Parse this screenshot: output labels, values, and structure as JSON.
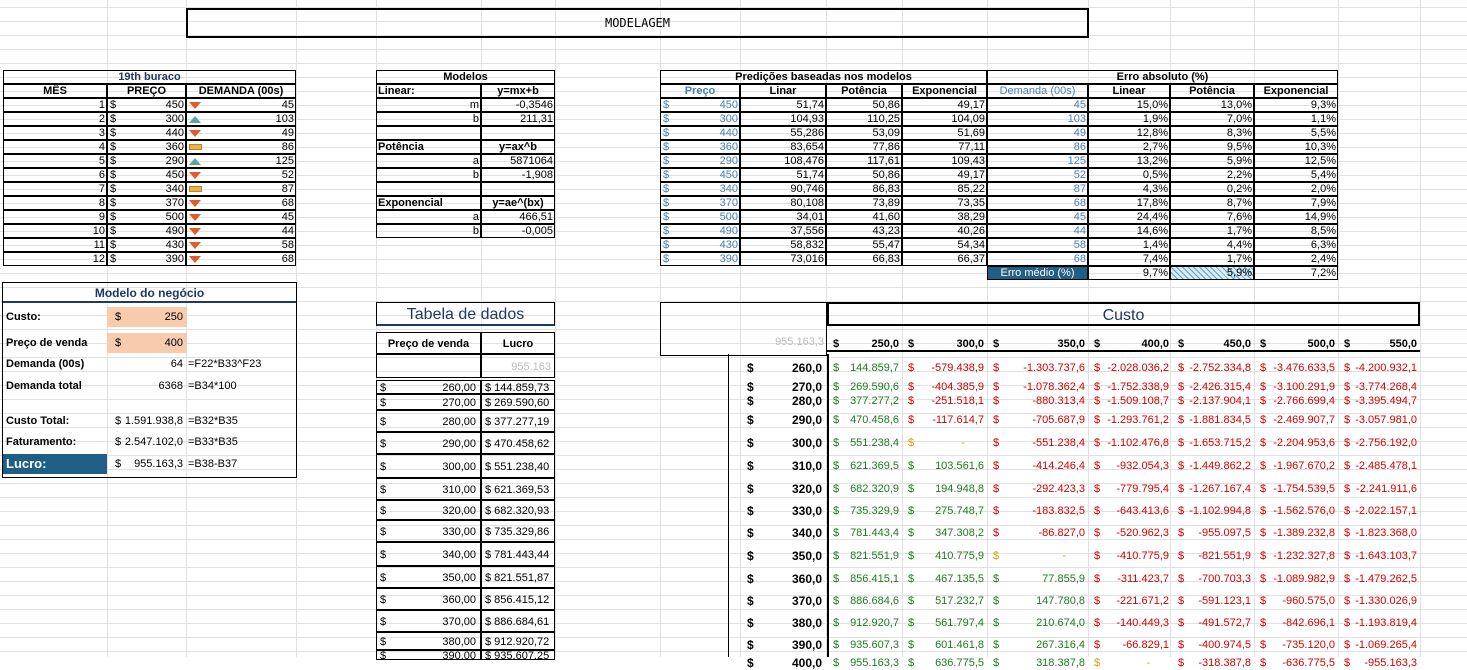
{
  "title": "MODELAGEM",
  "month_table": {
    "title": "19th buraco",
    "headers": [
      "MÊS",
      "PREÇO",
      "DEMANDA (00s)"
    ],
    "rows": [
      {
        "m": "1",
        "p": "450",
        "d": "45",
        "t": "down"
      },
      {
        "m": "2",
        "p": "300",
        "d": "103",
        "t": "up"
      },
      {
        "m": "3",
        "p": "440",
        "d": "49",
        "t": "down"
      },
      {
        "m": "4",
        "p": "360",
        "d": "86",
        "t": "flat"
      },
      {
        "m": "5",
        "p": "290",
        "d": "125",
        "t": "up"
      },
      {
        "m": "6",
        "p": "450",
        "d": "52",
        "t": "down"
      },
      {
        "m": "7",
        "p": "340",
        "d": "87",
        "t": "flat"
      },
      {
        "m": "8",
        "p": "370",
        "d": "68",
        "t": "down"
      },
      {
        "m": "9",
        "p": "500",
        "d": "45",
        "t": "down"
      },
      {
        "m": "10",
        "p": "490",
        "d": "44",
        "t": "down"
      },
      {
        "m": "11",
        "p": "430",
        "d": "58",
        "t": "down"
      },
      {
        "m": "12",
        "p": "390",
        "d": "68",
        "t": "down"
      }
    ]
  },
  "models": {
    "title": "Modelos",
    "rows": [
      [
        "Linear:",
        "y=mx+b"
      ],
      [
        "m",
        "-0,3546"
      ],
      [
        "b",
        "211,31"
      ],
      [
        "",
        ""
      ],
      [
        "Potência",
        "y=ax^b"
      ],
      [
        "a",
        "5871064"
      ],
      [
        "b",
        "-1,908"
      ],
      [
        "",
        ""
      ],
      [
        "Exponencial",
        "y=ae^(bx)"
      ],
      [
        "a",
        "466,51"
      ],
      [
        "b",
        "-0,005"
      ]
    ]
  },
  "predictions": {
    "title": "Predições baseadas nos modelos",
    "headers": [
      "Preço",
      "Linar",
      "Potência",
      "Exponencial"
    ],
    "rows": [
      [
        "450",
        "51,74",
        "50,86",
        "49,17"
      ],
      [
        "300",
        "104,93",
        "110,25",
        "104,09"
      ],
      [
        "440",
        "55,286",
        "53,09",
        "51,69"
      ],
      [
        "360",
        "83,654",
        "77,86",
        "77,11"
      ],
      [
        "290",
        "108,476",
        "117,61",
        "109,43"
      ],
      [
        "450",
        "51,74",
        "50,86",
        "49,17"
      ],
      [
        "340",
        "90,746",
        "86,83",
        "85,22"
      ],
      [
        "370",
        "80,108",
        "73,89",
        "73,35"
      ],
      [
        "500",
        "34,01",
        "41,60",
        "38,29"
      ],
      [
        "490",
        "37,556",
        "43,23",
        "40,26"
      ],
      [
        "430",
        "58,832",
        "55,47",
        "54,34"
      ],
      [
        "390",
        "73,016",
        "66,83",
        "66,37"
      ]
    ]
  },
  "errors": {
    "title": "Erro absoluto (%)",
    "headers": [
      "Demanda (00s)",
      "Linear",
      "Potência",
      "Exponencial"
    ],
    "rows": [
      [
        "45",
        "15,0%",
        "13,0%",
        "9,3%"
      ],
      [
        "103",
        "1,9%",
        "7,0%",
        "1,1%"
      ],
      [
        "49",
        "12,8%",
        "8,3%",
        "5,5%"
      ],
      [
        "86",
        "2,7%",
        "9,5%",
        "10,3%"
      ],
      [
        "125",
        "13,2%",
        "5,9%",
        "12,5%"
      ],
      [
        "52",
        "0,5%",
        "2,2%",
        "5,4%"
      ],
      [
        "87",
        "4,3%",
        "0,2%",
        "2,0%"
      ],
      [
        "68",
        "17,8%",
        "8,7%",
        "7,9%"
      ],
      [
        "45",
        "24,4%",
        "7,6%",
        "14,9%"
      ],
      [
        "44",
        "14,6%",
        "1,7%",
        "8,5%"
      ],
      [
        "58",
        "1,4%",
        "4,4%",
        "6,3%"
      ],
      [
        "68",
        "7,4%",
        "1,7%",
        "2,4%"
      ]
    ],
    "mean_label": "Erro médio (%)",
    "mean": [
      "9,7%",
      "5,9%",
      "7,2%"
    ]
  },
  "business": {
    "title": "Modelo do negócio",
    "rows": [
      {
        "label": "Custo:",
        "cur": "$",
        "val": "250",
        "f": ""
      },
      {
        "label": "Preço de venda",
        "cur": "$",
        "val": "400",
        "f": ""
      },
      {
        "label": "Demanda (00s)",
        "cur": "",
        "val": "64",
        "f": "=F22*B33^F23"
      },
      {
        "label": "Demanda total",
        "cur": "",
        "val": "6368",
        "f": "=B34*100"
      },
      {
        "label": "Custo Total:",
        "cur": "$",
        "val": "1.591.938,8",
        "f": "=B32*B35"
      },
      {
        "label": "Faturamento:",
        "cur": "$",
        "val": "2.547.102,0",
        "f": "=B33*B35"
      },
      {
        "label": "Lucro:",
        "cur": "$",
        "val": "955.163,3",
        "f": "=B38-B37"
      }
    ]
  },
  "data_table": {
    "title": "Tabela de dados",
    "headers": [
      "Preço de venda",
      "Lucro"
    ],
    "ghost": "955.163",
    "cur": "$",
    "rows": [
      [
        "260,00",
        "$ 144.859,73"
      ],
      [
        "270,00",
        "$ 269.590,60"
      ],
      [
        "280,00",
        "$ 377.277,19"
      ],
      [
        "290,00",
        "$ 470.458,62"
      ],
      [
        "300,00",
        "$ 551.238,40"
      ],
      [
        "310,00",
        "$ 621.369,53"
      ],
      [
        "320,00",
        "$ 682.320,93"
      ],
      [
        "330,00",
        "$ 735.329,86"
      ],
      [
        "340,00",
        "$ 781.443,44"
      ],
      [
        "350,00",
        "$ 821.551,87"
      ],
      [
        "360,00",
        "$ 856.415,12"
      ],
      [
        "370,00",
        "$ 886.684,61"
      ],
      [
        "380,00",
        "$ 912.920,72"
      ],
      [
        "390,00",
        "$ 935.607,25"
      ]
    ]
  },
  "custo": {
    "title": "Custo",
    "ghost": "955.163,3",
    "cur": "$",
    "cols": [
      "250,0",
      "300,0",
      "350,0",
      "400,0",
      "450,0",
      "500,0",
      "550,0"
    ],
    "rows": [
      {
        "p": "260,0",
        "v": [
          "144.859,7",
          "-579.438,9",
          "-1.303.737,6",
          "-2.028.036,2",
          "-2.752.334,8",
          "-3.476.633,5",
          "-4.200.932,1"
        ]
      },
      {
        "p": "270,0",
        "v": [
          "269.590,6",
          "-404.385,9",
          "-1.078.362,4",
          "-1.752.338,9",
          "-2.426.315,4",
          "-3.100.291,9",
          "-3.774.268,4"
        ]
      },
      {
        "p": "280,0",
        "v": [
          "377.277,2",
          "-251.518,1",
          "-880.313,4",
          "-1.509.108,7",
          "-2.137.904,1",
          "-2.766.699,4",
          "-3.395.494,7"
        ]
      },
      {
        "p": "290,0",
        "v": [
          "470.458,6",
          "-117.614,7",
          "-705.687,9",
          "-1.293.761,2",
          "-1.881.834,5",
          "-2.469.907,7",
          "-3.057.981,0"
        ]
      },
      {
        "p": "300,0",
        "v": [
          "551.238,4",
          "-",
          "-551.238,4",
          "-1.102.476,8",
          "-1.653.715,2",
          "-2.204.953,6",
          "-2.756.192,0"
        ]
      },
      {
        "p": "310,0",
        "v": [
          "621.369,5",
          "103.561,6",
          "-414.246,4",
          "-932.054,3",
          "-1.449.862,2",
          "-1.967.670,2",
          "-2.485.478,1"
        ]
      },
      {
        "p": "320,0",
        "v": [
          "682.320,9",
          "194.948,8",
          "-292.423,3",
          "-779.795,4",
          "-1.267.167,4",
          "-1.754.539,5",
          "-2.241.911,6"
        ]
      },
      {
        "p": "330,0",
        "v": [
          "735.329,9",
          "275.748,7",
          "-183.832,5",
          "-643.413,6",
          "-1.102.994,8",
          "-1.562.576,0",
          "-2.022.157,1"
        ]
      },
      {
        "p": "340,0",
        "v": [
          "781.443,4",
          "347.308,2",
          "-86.827,0",
          "-520.962,3",
          "-955.097,5",
          "-1.389.232,8",
          "-1.823.368,0"
        ]
      },
      {
        "p": "350,0",
        "v": [
          "821.551,9",
          "410.775,9",
          "-",
          "-410.775,9",
          "-821.551,9",
          "-1.232.327,8",
          "-1.643.103,7"
        ]
      },
      {
        "p": "360,0",
        "v": [
          "856.415,1",
          "467.135,5",
          "77.855,9",
          "-311.423,7",
          "-700.703,3",
          "-1.089.982,9",
          "-1.479.262,5"
        ]
      },
      {
        "p": "370,0",
        "v": [
          "886.684,6",
          "517.232,7",
          "147.780,8",
          "-221.671,2",
          "-591.123,1",
          "-960.575,0",
          "-1.330.026,9"
        ]
      },
      {
        "p": "380,0",
        "v": [
          "912.920,7",
          "561.797,4",
          "210.674,0",
          "-140.449,3",
          "-491.572,7",
          "-842.696,1",
          "-1.193.819,4"
        ]
      },
      {
        "p": "390,0",
        "v": [
          "935.607,3",
          "601.461,8",
          "267.316,4",
          "-66.829,1",
          "-400.974,5",
          "-735.120,0",
          "-1.069.265,4"
        ]
      },
      {
        "p": "400,0",
        "v": [
          "955.163,3",
          "636.775,5",
          "318.387,8",
          "-",
          "-318.387,8",
          "-636.775,5",
          "-955.163,3"
        ]
      }
    ]
  }
}
